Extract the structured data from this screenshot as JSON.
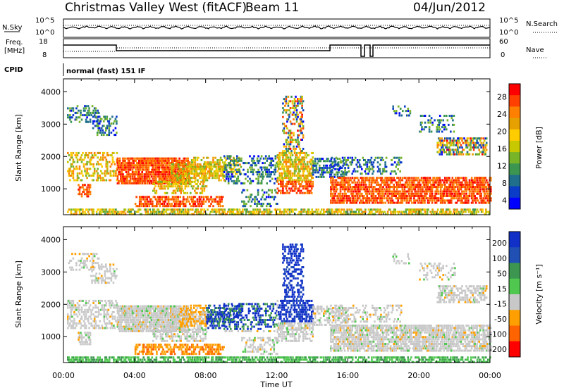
{
  "header": {
    "station": "Christmas Valley West (fitACF)",
    "beam": "Beam 11",
    "date": "04/Jun/2012"
  },
  "top_panels": {
    "nsky_label": "N.Sky",
    "nsearch_label": "N.Search",
    "nsky_ticks": [
      "10^5",
      "10^0"
    ],
    "nsearch_ticks": [
      "10^5",
      "10^0"
    ],
    "freq_label_1": "Freq.",
    "freq_label_2": "[MHz]",
    "freq_ticks": [
      "18",
      "8"
    ],
    "nave_label": "Nave",
    "nave_ticks": [
      "60",
      "0"
    ],
    "cpid_label": "CPID",
    "cpid_value": "normal (fast) 151 IF"
  },
  "chart_data": [
    {
      "type": "heatmap",
      "title": "",
      "ylabel": "Slant Range [km]",
      "xlabel": "Time UT",
      "ylim": [
        200,
        4400
      ],
      "yticks": [
        "4000",
        "3000",
        "2000",
        "1000"
      ],
      "xticks": [
        "00:00",
        "04:00",
        "08:00",
        "12:00",
        "16:00",
        "20:00",
        "00:00"
      ],
      "colorbar": {
        "label": "Power [dB]",
        "ticks": [
          "28",
          "24",
          "20",
          "16",
          "12",
          "8",
          "4"
        ],
        "colors": [
          "#ff0000",
          "#ff4000",
          "#ff8000",
          "#e6a000",
          "#ffcc00",
          "#c8c800",
          "#78b428",
          "#3c9650",
          "#1e6e8c",
          "#0a3cc8",
          "#0000ff"
        ]
      }
    },
    {
      "type": "heatmap",
      "title": "",
      "ylabel": "Slant Range [km]",
      "xlabel": "Time UT",
      "ylim": [
        200,
        4400
      ],
      "yticks": [
        "4000",
        "3000",
        "2000",
        "1000"
      ],
      "xticks": [
        "00:00",
        "04:00",
        "08:00",
        "12:00",
        "16:00",
        "20:00",
        "00:00"
      ],
      "colorbar": {
        "label": "Velocity [m s⁻¹]",
        "ticks": [
          "200",
          "100",
          "50",
          "15",
          "-15",
          "-50",
          "-100",
          "-200"
        ],
        "colors": [
          "#1030c8",
          "#2050b4",
          "#3c9650",
          "#50c850",
          "#c8c8c8",
          "#ffa000",
          "#ff6400",
          "#ff0000"
        ]
      }
    }
  ]
}
